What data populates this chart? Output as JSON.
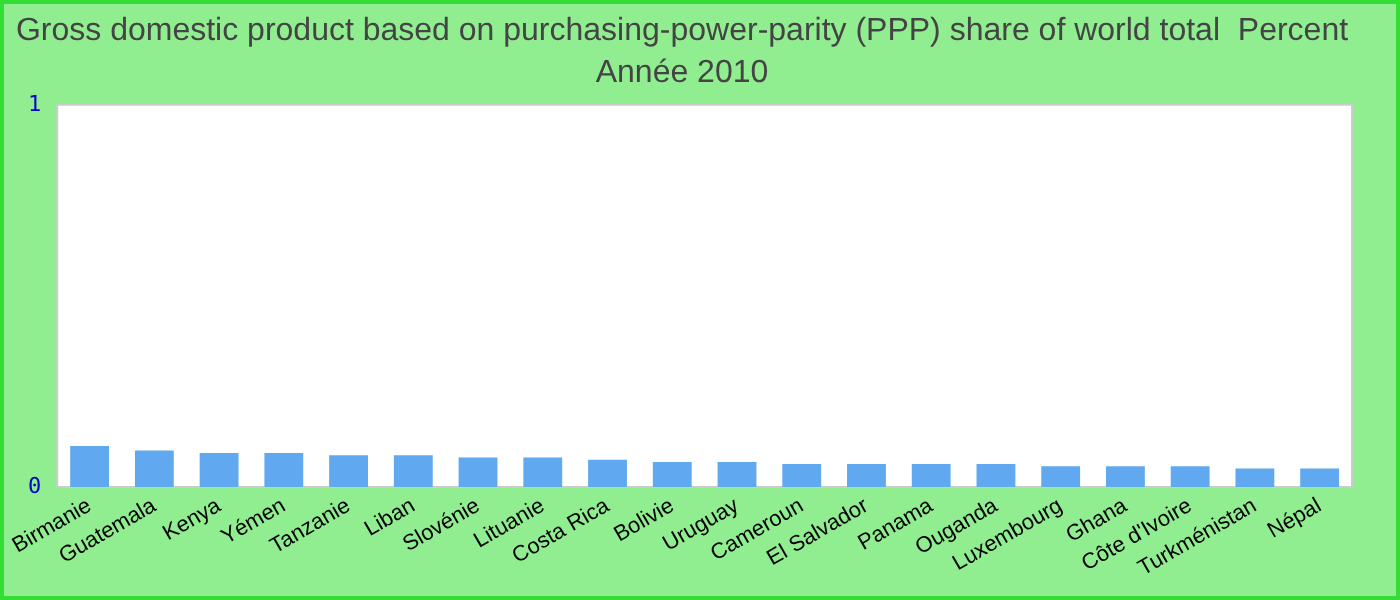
{
  "chart_data": {
    "type": "bar",
    "title": "Gross domestic product based on purchasing-power-parity (PPP) share of world total  Percent",
    "subtitle": "Année 2010",
    "categories": [
      "Birmanie",
      "Guatemala",
      "Kenya",
      "Yémen",
      "Tanzanie",
      "Liban",
      "Slovénie",
      "Lituanie",
      "Costa Rica",
      "Bolivie",
      "Uruguay",
      "Cameroun",
      "El Salvador",
      "Panama",
      "Ouganda",
      "Luxembourg",
      "Ghana",
      "Côte d'Ivoire",
      "Turkménistan",
      "Népal"
    ],
    "values": [
      0.107,
      0.095,
      0.089,
      0.089,
      0.083,
      0.083,
      0.077,
      0.077,
      0.071,
      0.065,
      0.065,
      0.06,
      0.06,
      0.06,
      0.06,
      0.054,
      0.054,
      0.054,
      0.048,
      0.048
    ],
    "color": "#60a8f0",
    "ylim": [
      0,
      1
    ],
    "yticks": [
      0,
      1
    ],
    "grid": false,
    "legend": false
  }
}
